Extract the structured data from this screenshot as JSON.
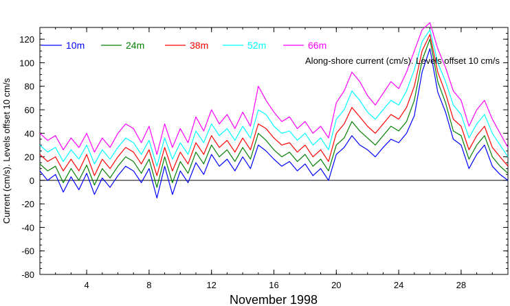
{
  "chart_data": {
    "type": "line",
    "title": "",
    "xlabel": "November 1998",
    "ylabel": "Current (cm/s). Levels offset 10 cm/s",
    "annotation": "Along-shore current (cm/s). Levels offset 10 cm/s",
    "xlim": [
      1,
      31
    ],
    "ylim": [
      -80,
      130
    ],
    "x_ticks": [
      4,
      8,
      12,
      16,
      20,
      24,
      28
    ],
    "y_ticks": [
      -80,
      -60,
      -40,
      -20,
      0,
      20,
      40,
      60,
      80,
      100,
      120
    ],
    "grid": false,
    "zero_line": true,
    "legend_position": "top-left, inside",
    "x": [
      1,
      1.5,
      2,
      2.5,
      3,
      3.5,
      4,
      4.5,
      5,
      5.5,
      6,
      6.5,
      7,
      7.5,
      8,
      8.5,
      9,
      9.5,
      10,
      10.5,
      11,
      11.5,
      12,
      12.5,
      13,
      13.5,
      14,
      14.5,
      15,
      15.5,
      16,
      16.5,
      17,
      17.5,
      18,
      18.5,
      19,
      19.5,
      20,
      20.5,
      21,
      21.5,
      22,
      22.5,
      23,
      23.5,
      24,
      24.5,
      25,
      25.5,
      26,
      26.5,
      27,
      27.5,
      28,
      28.5,
      29,
      29.5,
      30,
      30.5,
      31
    ],
    "series": [
      {
        "name": "10m",
        "color": "#0000ff",
        "values": [
          8,
          0,
          5,
          -10,
          3,
          -8,
          6,
          -12,
          2,
          -6,
          4,
          12,
          8,
          -2,
          10,
          -15,
          12,
          -12,
          8,
          -2,
          15,
          5,
          22,
          12,
          18,
          8,
          20,
          10,
          30,
          25,
          18,
          12,
          16,
          8,
          14,
          4,
          10,
          0,
          22,
          28,
          38,
          30,
          26,
          20,
          28,
          35,
          32,
          40,
          55,
          92,
          112,
          75,
          58,
          35,
          30,
          10,
          22,
          30,
          12,
          5,
          0
        ]
      },
      {
        "name": "24m",
        "color": "#008000",
        "values": [
          14,
          8,
          12,
          -2,
          10,
          0,
          13,
          -4,
          10,
          2,
          12,
          20,
          16,
          6,
          18,
          -6,
          20,
          -2,
          16,
          6,
          24,
          14,
          30,
          20,
          26,
          16,
          28,
          18,
          40,
          34,
          26,
          20,
          24,
          16,
          22,
          12,
          18,
          8,
          30,
          36,
          50,
          42,
          36,
          30,
          38,
          46,
          42,
          50,
          68,
          102,
          120,
          84,
          66,
          42,
          38,
          18,
          30,
          38,
          20,
          12,
          6
        ]
      },
      {
        "name": "38m",
        "color": "#ff0000",
        "values": [
          22,
          16,
          20,
          8,
          18,
          8,
          22,
          4,
          18,
          10,
          20,
          28,
          24,
          14,
          26,
          4,
          28,
          8,
          24,
          14,
          32,
          22,
          38,
          28,
          34,
          24,
          36,
          26,
          48,
          44,
          36,
          30,
          32,
          24,
          30,
          20,
          26,
          16,
          40,
          48,
          62,
          54,
          46,
          40,
          48,
          56,
          52,
          62,
          80,
          110,
          124,
          92,
          74,
          52,
          46,
          26,
          38,
          46,
          28,
          20,
          12
        ]
      },
      {
        "name": "52m",
        "color": "#00ffff",
        "values": [
          30,
          24,
          28,
          16,
          26,
          18,
          30,
          14,
          26,
          18,
          28,
          36,
          32,
          22,
          34,
          12,
          36,
          18,
          32,
          22,
          42,
          32,
          48,
          38,
          44,
          34,
          46,
          36,
          60,
          56,
          46,
          40,
          42,
          34,
          40,
          30,
          36,
          26,
          52,
          60,
          76,
          68,
          58,
          52,
          60,
          68,
          64,
          76,
          94,
          118,
          128,
          100,
          84,
          64,
          56,
          36,
          48,
          56,
          40,
          30,
          20
        ]
      },
      {
        "name": "66m",
        "color": "#ff00ff",
        "values": [
          40,
          34,
          38,
          26,
          36,
          28,
          40,
          24,
          36,
          28,
          40,
          48,
          44,
          32,
          46,
          22,
          48,
          28,
          44,
          32,
          54,
          42,
          60,
          48,
          56,
          44,
          58,
          46,
          80,
          68,
          58,
          50,
          54,
          44,
          50,
          40,
          46,
          36,
          66,
          76,
          92,
          84,
          72,
          64,
          74,
          84,
          78,
          92,
          110,
          128,
          134,
          112,
          96,
          76,
          68,
          46,
          60,
          68,
          52,
          40,
          28
        ]
      }
    ]
  }
}
